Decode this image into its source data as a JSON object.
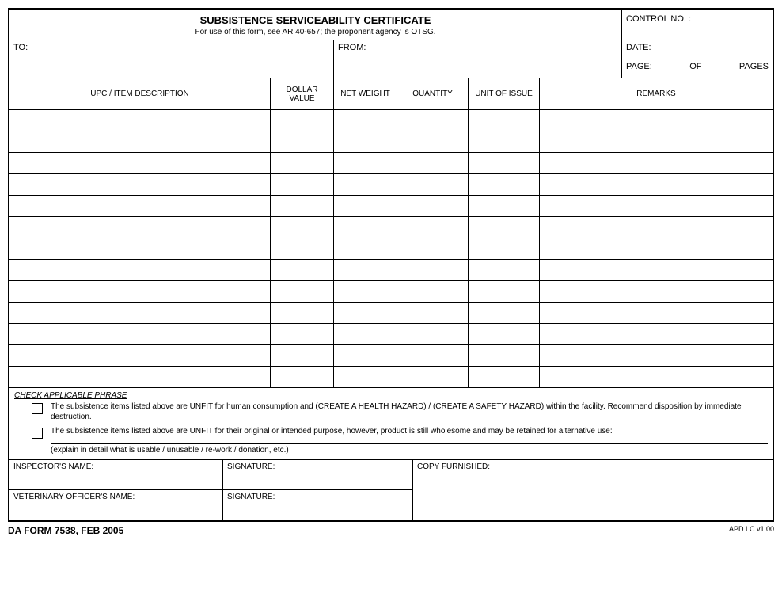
{
  "header": {
    "title": "SUBSISTENCE SERVICEABILITY CERTIFICATE",
    "subtitle": "For use of this form, see AR 40-657; the proponent agency is OTSG.",
    "control_label": "CONTROL NO. :"
  },
  "addr": {
    "to_label": "TO:",
    "from_label": "FROM:",
    "date_label": "DATE:",
    "page_label": "PAGE:",
    "of_label": "OF",
    "pages_label": "PAGES"
  },
  "columns": {
    "desc": "UPC / ITEM DESCRIPTION",
    "dollar": "DOLLAR VALUE",
    "net": "NET WEIGHT",
    "qty": "QUANTITY",
    "unit": "UNIT OF ISSUE",
    "remarks": "REMARKS"
  },
  "data_row_count": 13,
  "check": {
    "heading": "CHECK APPLICABLE PHRASE",
    "opt1": "The subsistence items listed above are UNFIT for human consumption and (CREATE A HEALTH HAZARD) / (CREATE A SAFETY HAZARD) within the facility.  Recommend disposition by immediate destruction.",
    "opt2": "The subsistence items listed above are UNFIT for their original or intended purpose, however, product is still wholesome and may be retained for alternative use:",
    "explain": "(explain in detail what is usable / unusable / re-work / donation, etc.)"
  },
  "sig": {
    "inspector_name": "INSPECTOR'S NAME:",
    "signature": "SIGNATURE:",
    "copy_furnished": "COPY FURNISHED:",
    "vet_name": "VETERINARY OFFICER'S NAME:"
  },
  "footer": {
    "form_id": "DA FORM 7538, FEB 2005",
    "version": "APD LC v1.00"
  },
  "colors": {
    "border": "#000000",
    "background": "#ffffff",
    "text": "#000000"
  }
}
